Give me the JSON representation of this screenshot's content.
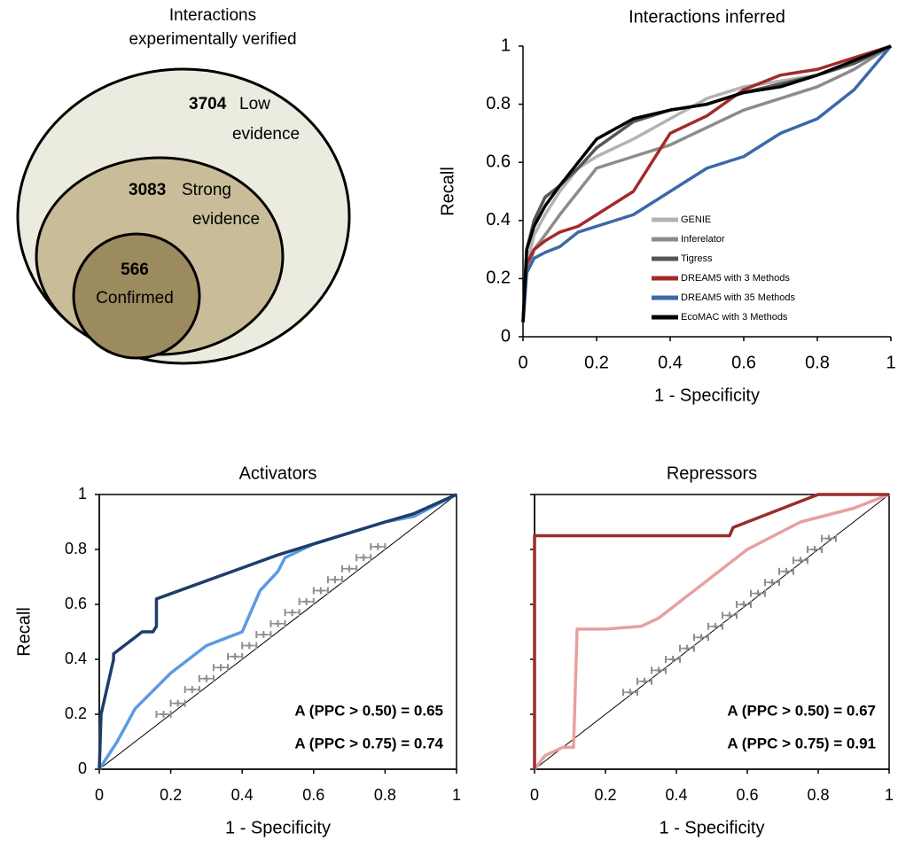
{
  "chart_data": [
    {
      "type": "venn",
      "title": [
        "Interactions",
        "experimentally verified"
      ],
      "sets": [
        {
          "value": 3704,
          "label": [
            "Low",
            "evidence"
          ],
          "color": "#ecebdf"
        },
        {
          "value": 3083,
          "label": [
            "Strong",
            "evidence"
          ],
          "color": "#c8bd98"
        },
        {
          "value": 566,
          "label": [
            "Confirmed"
          ],
          "color": "#9c8b5e"
        }
      ]
    },
    {
      "type": "line",
      "title": "Interactions inferred",
      "xlabel": "1 - Specificity",
      "ylabel": "Recall",
      "xlim": [
        0,
        1
      ],
      "ylim": [
        0,
        1
      ],
      "xticks": [
        0,
        0.2,
        0.4,
        0.6,
        0.8,
        1
      ],
      "yticks": [
        0,
        0.2,
        0.4,
        0.6,
        0.8,
        1
      ],
      "legend": "lower center",
      "x": [
        0,
        0.01,
        0.03,
        0.06,
        0.1,
        0.15,
        0.2,
        0.3,
        0.4,
        0.5,
        0.6,
        0.7,
        0.8,
        0.9,
        1
      ],
      "series": [
        {
          "name": "GENIE",
          "color": "#b3b3b3",
          "values": [
            0.05,
            0.25,
            0.35,
            0.42,
            0.5,
            0.58,
            0.62,
            0.68,
            0.75,
            0.82,
            0.86,
            0.88,
            0.9,
            0.95,
            1
          ]
        },
        {
          "name": "Inferelator",
          "color": "#8c8c8c",
          "values": [
            0.05,
            0.22,
            0.3,
            0.35,
            0.42,
            0.5,
            0.58,
            0.62,
            0.66,
            0.72,
            0.78,
            0.82,
            0.86,
            0.92,
            1
          ]
        },
        {
          "name": "Tigress",
          "color": "#555555",
          "values": [
            0.05,
            0.3,
            0.4,
            0.48,
            0.52,
            0.58,
            0.65,
            0.74,
            0.78,
            0.8,
            0.84,
            0.87,
            0.9,
            0.94,
            1
          ]
        },
        {
          "name": "DREAM5 with 3 Methods",
          "color": "#a32a2a",
          "values": [
            0.05,
            0.25,
            0.3,
            0.33,
            0.36,
            0.38,
            0.42,
            0.5,
            0.7,
            0.76,
            0.85,
            0.9,
            0.92,
            0.96,
            1
          ]
        },
        {
          "name": "DREAM5 with 35 Methods",
          "color": "#3b68a8",
          "values": [
            0.05,
            0.22,
            0.27,
            0.29,
            0.31,
            0.36,
            0.38,
            0.42,
            0.5,
            0.58,
            0.62,
            0.7,
            0.75,
            0.85,
            1
          ]
        },
        {
          "name": "EcoMAC with 3 Methods",
          "color": "#000000",
          "values": [
            0.05,
            0.3,
            0.38,
            0.45,
            0.52,
            0.6,
            0.68,
            0.75,
            0.78,
            0.8,
            0.84,
            0.86,
            0.9,
            0.95,
            1
          ]
        }
      ]
    },
    {
      "type": "line",
      "title": "Activators",
      "title_color": "#5b8fd6",
      "xlabel": "1 - Specificity",
      "ylabel": "Recall",
      "xlim": [
        0,
        1
      ],
      "ylim": [
        0,
        1
      ],
      "xticks": [
        0,
        0.2,
        0.4,
        0.6,
        0.8,
        1
      ],
      "yticks": [
        0,
        0.2,
        0.4,
        0.6,
        0.8,
        1
      ],
      "diagonal": true,
      "box": true,
      "series": [
        {
          "color": "#5b9be0",
          "x": [
            0,
            0.05,
            0.1,
            0.2,
            0.3,
            0.4,
            0.45,
            0.5,
            0.52,
            0.6,
            0.8,
            0.88,
            1
          ],
          "values": [
            0,
            0.1,
            0.22,
            0.35,
            0.45,
            0.5,
            0.65,
            0.72,
            0.77,
            0.82,
            0.9,
            0.92,
            1
          ]
        },
        {
          "color": "#1f3d6b",
          "x": [
            0,
            0.005,
            0.04,
            0.04,
            0.1,
            0.12,
            0.15,
            0.16,
            0.16,
            0.5,
            0.8,
            0.88,
            1
          ],
          "values": [
            0,
            0.2,
            0.4,
            0.42,
            0.48,
            0.5,
            0.5,
            0.52,
            0.62,
            0.78,
            0.9,
            0.93,
            1
          ]
        },
        {
          "type": "scatter",
          "color": "#8f8f8f",
          "x": [
            0.18,
            0.22,
            0.26,
            0.3,
            0.34,
            0.38,
            0.42,
            0.46,
            0.5,
            0.54,
            0.58,
            0.62,
            0.66,
            0.7,
            0.74,
            0.78
          ],
          "values": [
            0.2,
            0.24,
            0.29,
            0.33,
            0.37,
            0.41,
            0.45,
            0.49,
            0.53,
            0.57,
            0.61,
            0.65,
            0.69,
            0.73,
            0.77,
            0.81
          ],
          "xerr": [
            0.02,
            0.02,
            0.02,
            0.02,
            0.02,
            0.02,
            0.02,
            0.02,
            0.02,
            0.02,
            0.02,
            0.02,
            0.02,
            0.02,
            0.02,
            0.02
          ]
        }
      ],
      "annotations": [
        {
          "text": "A (PPC > 0.50) = 0.65",
          "color": "#6aa0e0"
        },
        {
          "text": "A (PPC > 0.75) = 0.74",
          "color": "#2a4a78"
        }
      ]
    },
    {
      "type": "line",
      "title": "Repressors",
      "title_color": "#a33a3a",
      "xlabel": "1 - Specificity",
      "xlim": [
        0,
        1
      ],
      "ylim": [
        0,
        1
      ],
      "xticks": [
        0,
        0.2,
        0.4,
        0.6,
        0.8,
        1
      ],
      "yticks": [
        0,
        0.2,
        0.4,
        0.6,
        0.8,
        1
      ],
      "ytick_labels": false,
      "diagonal": true,
      "box": true,
      "series": [
        {
          "color": "#e8a0a0",
          "x": [
            0,
            0.03,
            0.08,
            0.11,
            0.12,
            0.2,
            0.3,
            0.35,
            0.4,
            0.45,
            0.55,
            0.6,
            0.75,
            0.9,
            1
          ],
          "values": [
            0,
            0.05,
            0.08,
            0.08,
            0.51,
            0.51,
            0.52,
            0.55,
            0.6,
            0.65,
            0.75,
            0.8,
            0.9,
            0.95,
            1
          ]
        },
        {
          "color": "#9b2c2c",
          "x": [
            0,
            0,
            0.55,
            0.56,
            0.6,
            0.7,
            0.8,
            1
          ],
          "values": [
            0,
            0.85,
            0.85,
            0.88,
            0.9,
            0.95,
            1,
            1
          ]
        },
        {
          "type": "scatter",
          "color": "#8f8f8f",
          "x": [
            0.27,
            0.31,
            0.35,
            0.39,
            0.43,
            0.47,
            0.51,
            0.55,
            0.59,
            0.63,
            0.67,
            0.71,
            0.75,
            0.79,
            0.83
          ],
          "values": [
            0.28,
            0.32,
            0.36,
            0.4,
            0.44,
            0.48,
            0.52,
            0.56,
            0.6,
            0.64,
            0.68,
            0.72,
            0.76,
            0.8,
            0.84
          ],
          "xerr": [
            0.02,
            0.02,
            0.02,
            0.02,
            0.02,
            0.02,
            0.02,
            0.02,
            0.02,
            0.02,
            0.02,
            0.02,
            0.02,
            0.02,
            0.02
          ]
        }
      ],
      "annotations": [
        {
          "text": "A (PPC > 0.50) = 0.67",
          "color": "#e8a0a0"
        },
        {
          "text": "A (PPC > 0.75) = 0.91",
          "color": "#9b2c2c"
        }
      ]
    }
  ]
}
